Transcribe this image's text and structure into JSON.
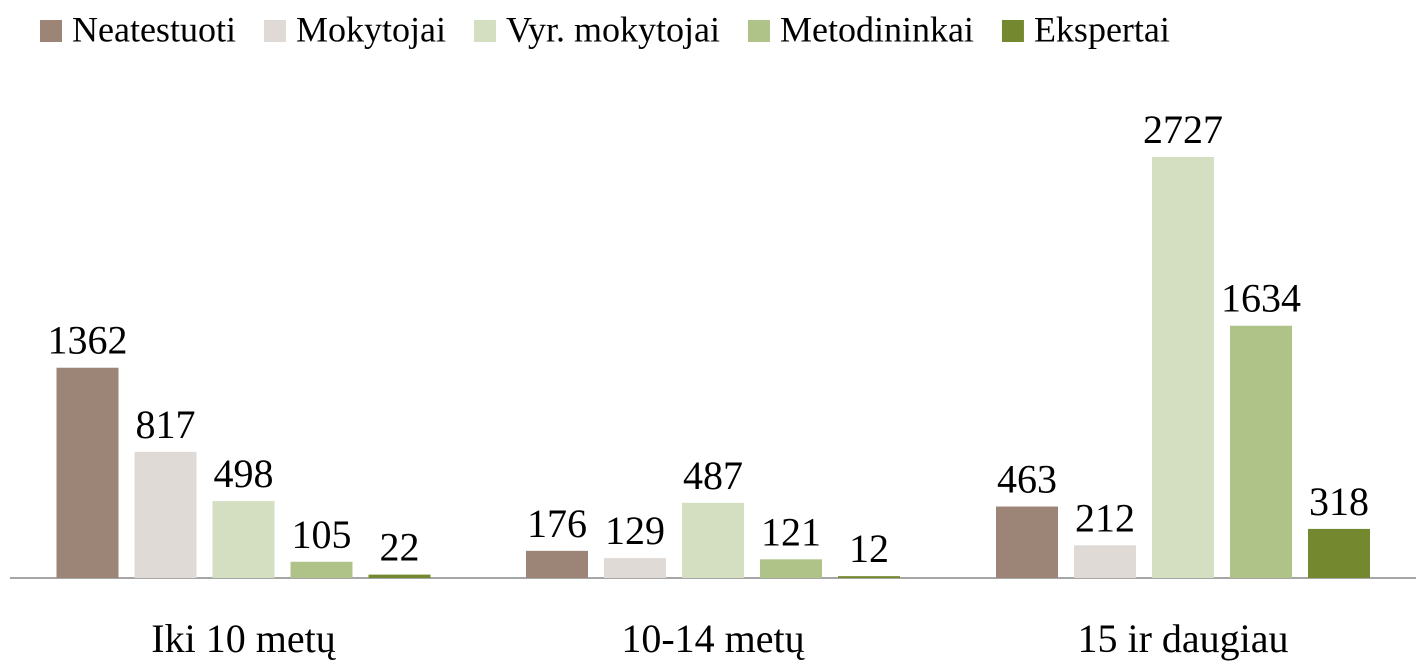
{
  "chart_data": {
    "type": "bar",
    "categories": [
      "Iki 10 metų",
      "10-14 metų",
      "15 ir daugiau"
    ],
    "series": [
      {
        "name": "Neatestuoti",
        "color": "#9c8577",
        "values": [
          1362,
          176,
          463
        ]
      },
      {
        "name": "Mokytojai",
        "color": "#dfdad6",
        "values": [
          817,
          129,
          212
        ]
      },
      {
        "name": "Vyr. mokytojai",
        "color": "#d3dfc0",
        "values": [
          498,
          487,
          2727
        ]
      },
      {
        "name": "Metodininkai",
        "color": "#afc389",
        "values": [
          105,
          121,
          1634
        ]
      },
      {
        "name": "Ekspertai",
        "color": "#74892f",
        "values": [
          22,
          12,
          318
        ]
      }
    ],
    "legend": "top"
  }
}
